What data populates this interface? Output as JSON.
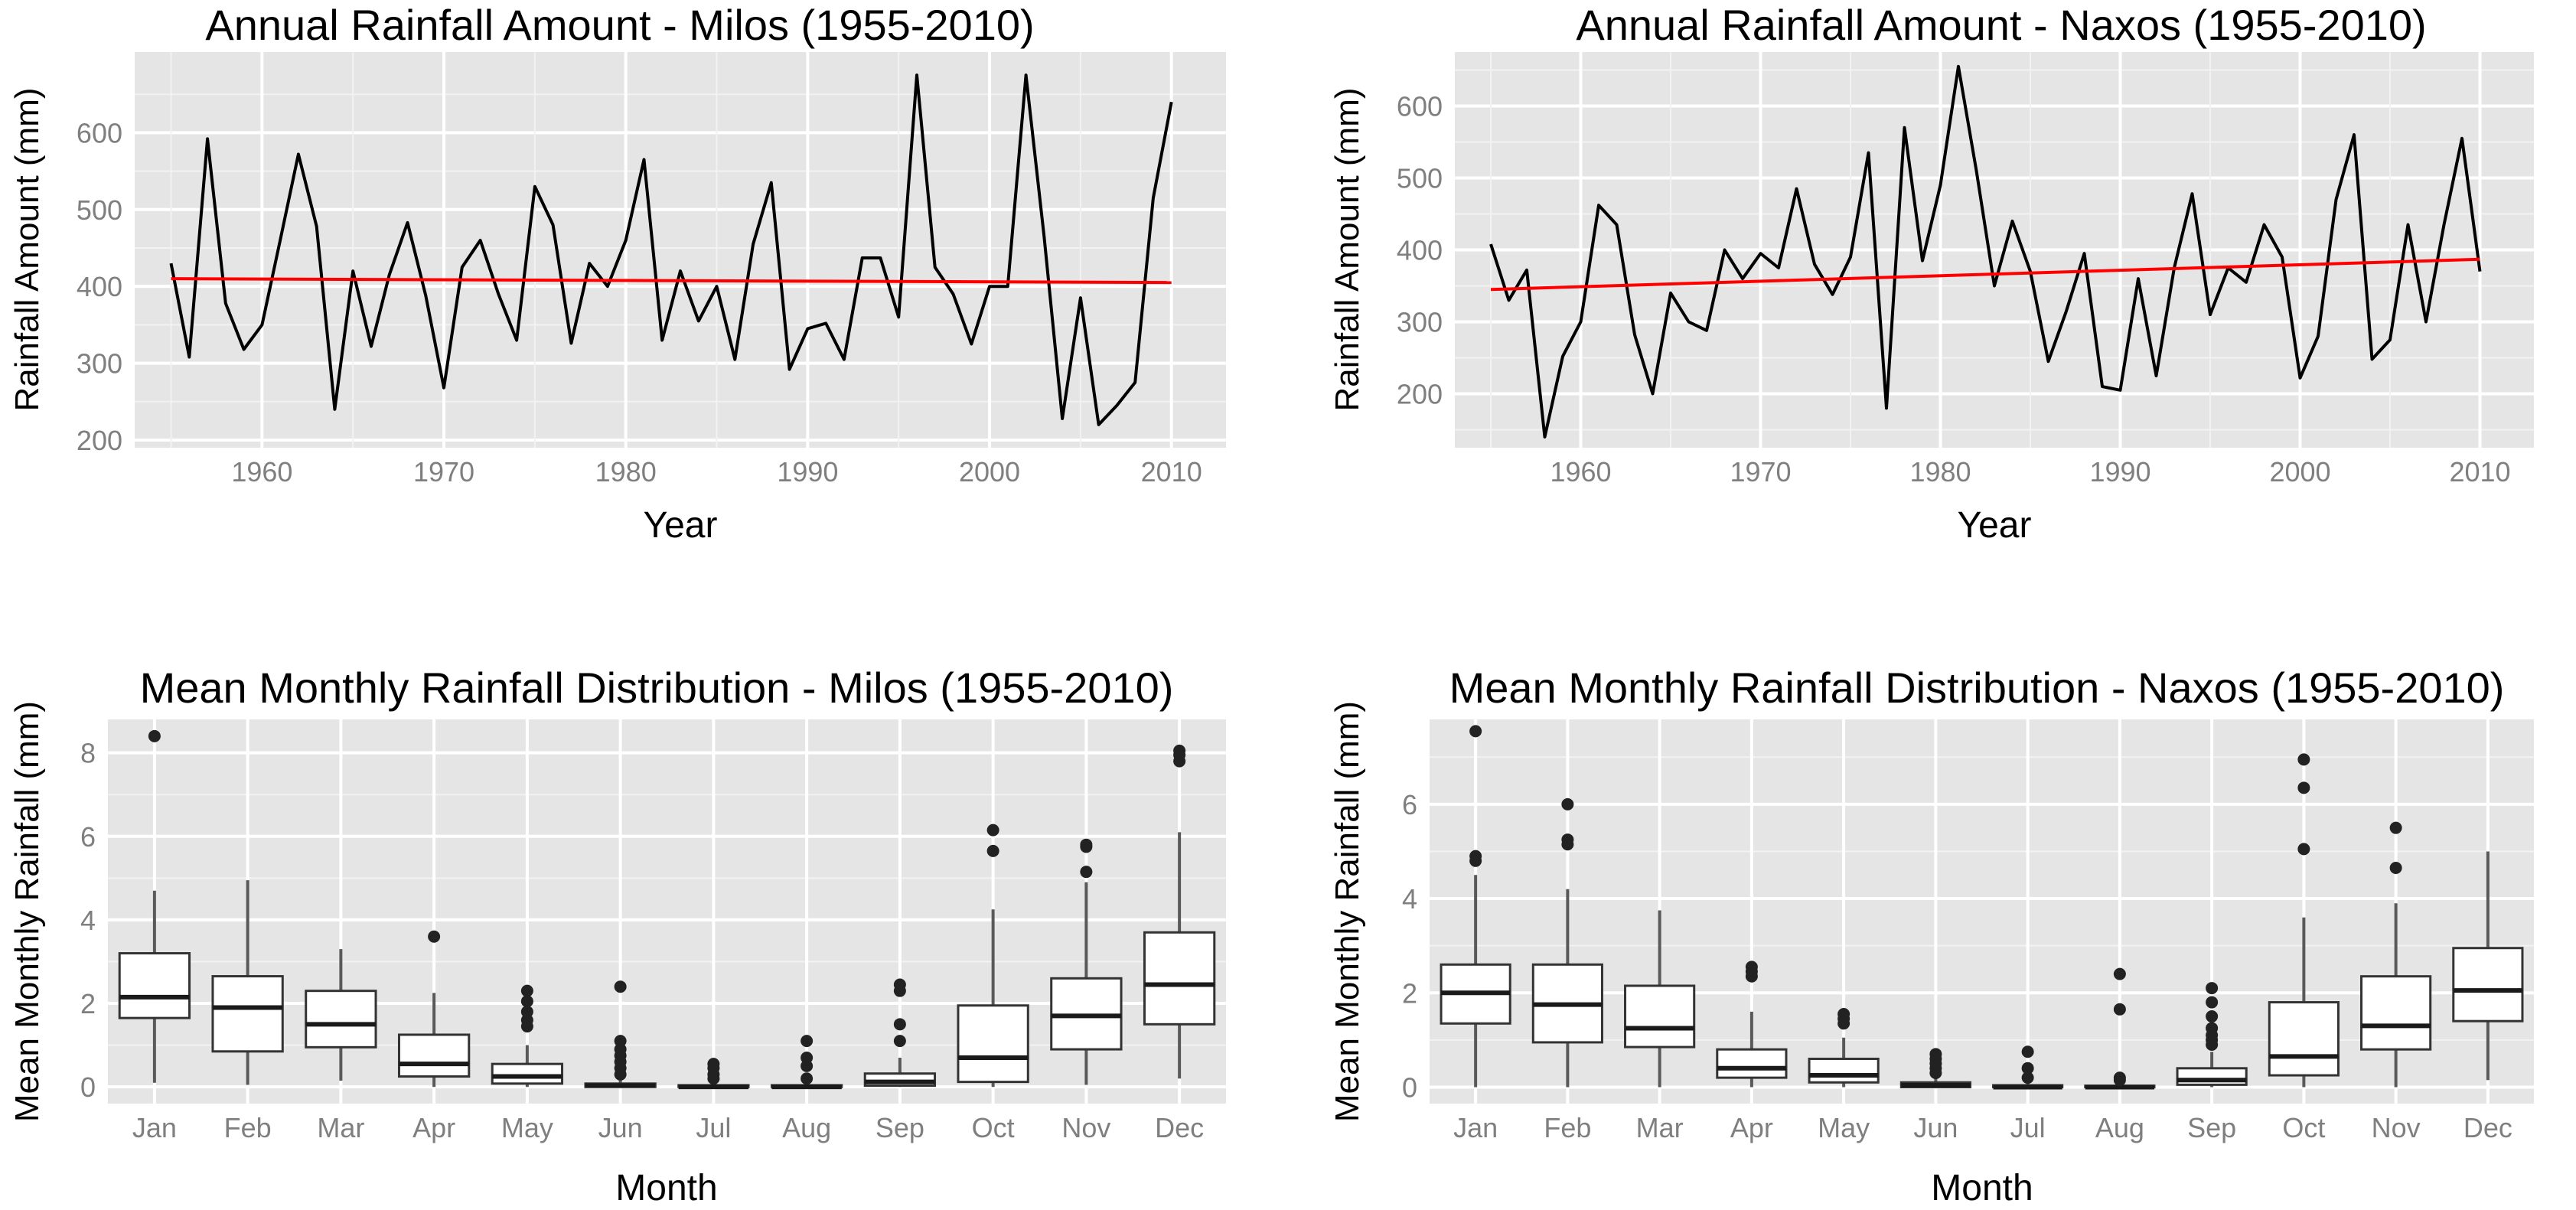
{
  "chart_data": [
    {
      "type": "line",
      "title": "Annual Rainfall Amount - Milos (1955-2010)",
      "xlabel": "Year",
      "ylabel": "Rainfall Amount (mm)",
      "xlim": [
        1953,
        2013
      ],
      "ylim": [
        190,
        705
      ],
      "x_ticks": [
        1960,
        1970,
        1980,
        1990,
        2000,
        2010
      ],
      "y_ticks": [
        200,
        300,
        400,
        500,
        600
      ],
      "x": [
        1955,
        1956,
        1957,
        1958,
        1959,
        1960,
        1961,
        1962,
        1963,
        1964,
        1965,
        1966,
        1967,
        1968,
        1969,
        1970,
        1971,
        1972,
        1973,
        1974,
        1975,
        1976,
        1977,
        1978,
        1979,
        1980,
        1981,
        1982,
        1983,
        1984,
        1985,
        1986,
        1987,
        1988,
        1989,
        1990,
        1991,
        1992,
        1993,
        1994,
        1995,
        1996,
        1997,
        1998,
        1999,
        2000,
        2001,
        2002,
        2003,
        2004,
        2005,
        2006,
        2007,
        2008,
        2009,
        2010
      ],
      "series": [
        {
          "name": "Annual rainfall",
          "color": "#000000",
          "values": [
            430,
            308,
            592,
            378,
            318,
            350,
            460,
            572,
            478,
            240,
            420,
            322,
            415,
            483,
            388,
            268,
            425,
            460,
            390,
            330,
            530,
            480,
            326,
            430,
            400,
            460,
            565,
            330,
            420,
            355,
            400,
            305,
            455,
            535,
            292,
            345,
            352,
            305,
            437,
            437,
            360,
            675,
            425,
            390,
            325,
            400,
            400,
            675,
            465,
            228,
            385,
            220,
            245,
            275,
            515,
            640
          ]
        },
        {
          "name": "Linear trend",
          "color": "#ff0000",
          "values_at": [
            1955,
            2010
          ],
          "trend": [
            410,
            405
          ]
        }
      ]
    },
    {
      "type": "line",
      "title": "Annual Rainfall Amount - Naxos (1955-2010)",
      "xlabel": "Year",
      "ylabel": "Rainfall Amount (mm)",
      "xlim": [
        1953,
        2013
      ],
      "ylim": [
        125,
        675
      ],
      "x_ticks": [
        1960,
        1970,
        1980,
        1990,
        2000,
        2010
      ],
      "y_ticks": [
        200,
        300,
        400,
        500,
        600
      ],
      "x": [
        1955,
        1956,
        1957,
        1958,
        1959,
        1960,
        1961,
        1962,
        1963,
        1964,
        1965,
        1966,
        1967,
        1968,
        1969,
        1970,
        1971,
        1972,
        1973,
        1974,
        1975,
        1976,
        1977,
        1978,
        1979,
        1980,
        1981,
        1982,
        1983,
        1984,
        1985,
        1986,
        1987,
        1988,
        1989,
        1990,
        1991,
        1992,
        1993,
        1994,
        1995,
        1996,
        1997,
        1998,
        1999,
        2000,
        2001,
        2002,
        2003,
        2004,
        2005,
        2006,
        2007,
        2008,
        2009,
        2010
      ],
      "series": [
        {
          "name": "Annual rainfall",
          "color": "#000000",
          "values": [
            408,
            330,
            372,
            140,
            252,
            300,
            462,
            435,
            282,
            200,
            340,
            300,
            288,
            400,
            360,
            395,
            375,
            485,
            380,
            338,
            390,
            535,
            180,
            570,
            385,
            490,
            655,
            510,
            350,
            440,
            370,
            245,
            315,
            395,
            210,
            205,
            360,
            225,
            375,
            478,
            310,
            375,
            355,
            435,
            390,
            222,
            280,
            470,
            560,
            248,
            275,
            435,
            300,
            435,
            555,
            370
          ]
        },
        {
          "name": "Linear trend",
          "color": "#ff0000",
          "values_at": [
            1955,
            2010
          ],
          "trend": [
            345,
            387
          ]
        }
      ]
    },
    {
      "type": "box",
      "title": "Mean Monthly Rainfall Distribution - Milos (1955-2010)",
      "xlabel": "Month",
      "ylabel": "Mean Monthly Rainfall (mm)",
      "ylim": [
        -0.4,
        8.8
      ],
      "y_ticks": [
        0,
        2,
        4,
        6,
        8
      ],
      "categories": [
        "Jan",
        "Feb",
        "Mar",
        "Apr",
        "May",
        "Jun",
        "Jul",
        "Aug",
        "Sep",
        "Oct",
        "Nov",
        "Dec"
      ],
      "boxes": [
        {
          "min": 0.1,
          "q1": 1.65,
          "median": 2.15,
          "q3": 3.2,
          "max": 4.7,
          "outliers": [
            8.4
          ]
        },
        {
          "min": 0.05,
          "q1": 0.85,
          "median": 1.9,
          "q3": 2.65,
          "max": 4.95,
          "outliers": []
        },
        {
          "min": 0.15,
          "q1": 0.95,
          "median": 1.5,
          "q3": 2.3,
          "max": 3.3,
          "outliers": []
        },
        {
          "min": 0.0,
          "q1": 0.25,
          "median": 0.55,
          "q3": 1.25,
          "max": 2.25,
          "outliers": [
            3.6
          ]
        },
        {
          "min": 0.0,
          "q1": 0.08,
          "median": 0.25,
          "q3": 0.55,
          "max": 1.0,
          "outliers": [
            1.45,
            1.6,
            1.8,
            2.05,
            2.3
          ]
        },
        {
          "min": 0.0,
          "q1": 0.0,
          "median": 0.03,
          "q3": 0.08,
          "max": 0.2,
          "outliers": [
            0.3,
            0.45,
            0.6,
            0.75,
            0.9,
            1.1,
            2.4
          ]
        },
        {
          "min": 0.0,
          "q1": 0.0,
          "median": 0.0,
          "q3": 0.04,
          "max": 0.1,
          "outliers": [
            0.2,
            0.3,
            0.45,
            0.55
          ]
        },
        {
          "min": 0.0,
          "q1": 0.0,
          "median": 0.0,
          "q3": 0.04,
          "max": 0.1,
          "outliers": [
            0.2,
            0.5,
            0.7,
            1.1
          ]
        },
        {
          "min": 0.0,
          "q1": 0.03,
          "median": 0.12,
          "q3": 0.32,
          "max": 0.7,
          "outliers": [
            1.1,
            1.5,
            2.3,
            2.45
          ]
        },
        {
          "min": 0.0,
          "q1": 0.12,
          "median": 0.7,
          "q3": 1.95,
          "max": 4.25,
          "outliers": [
            5.65,
            6.15
          ]
        },
        {
          "min": 0.05,
          "q1": 0.9,
          "median": 1.7,
          "q3": 2.6,
          "max": 4.9,
          "outliers": [
            5.15,
            5.75,
            5.8
          ]
        },
        {
          "min": 0.2,
          "q1": 1.5,
          "median": 2.45,
          "q3": 3.7,
          "max": 6.1,
          "outliers": [
            7.8,
            7.95,
            8.05
          ]
        }
      ]
    },
    {
      "type": "box",
      "title": "Mean Monthly Rainfall Distribution - Naxos (1955-2010)",
      "xlabel": "Month",
      "ylabel": "Mean Monthly Rainfall (mm)",
      "ylim": [
        -0.35,
        7.8
      ],
      "y_ticks": [
        0,
        2,
        4,
        6
      ],
      "categories": [
        "Jan",
        "Feb",
        "Mar",
        "Apr",
        "May",
        "Jun",
        "Jul",
        "Aug",
        "Sep",
        "Oct",
        "Nov",
        "Dec"
      ],
      "boxes": [
        {
          "min": 0.0,
          "q1": 1.35,
          "median": 2.0,
          "q3": 2.6,
          "max": 4.5,
          "outliers": [
            4.8,
            4.9,
            7.55
          ]
        },
        {
          "min": 0.0,
          "q1": 0.95,
          "median": 1.75,
          "q3": 2.6,
          "max": 4.2,
          "outliers": [
            5.15,
            5.25,
            6.0
          ]
        },
        {
          "min": 0.0,
          "q1": 0.85,
          "median": 1.25,
          "q3": 2.15,
          "max": 3.75,
          "outliers": []
        },
        {
          "min": 0.0,
          "q1": 0.2,
          "median": 0.4,
          "q3": 0.8,
          "max": 1.6,
          "outliers": [
            2.35,
            2.45,
            2.55
          ]
        },
        {
          "min": 0.0,
          "q1": 0.1,
          "median": 0.25,
          "q3": 0.6,
          "max": 1.05,
          "outliers": [
            1.35,
            1.45,
            1.55
          ]
        },
        {
          "min": 0.0,
          "q1": 0.0,
          "median": 0.04,
          "q3": 0.1,
          "max": 0.2,
          "outliers": [
            0.3,
            0.4,
            0.5,
            0.6,
            0.7
          ]
        },
        {
          "min": 0.0,
          "q1": 0.0,
          "median": 0.0,
          "q3": 0.04,
          "max": 0.1,
          "outliers": [
            0.2,
            0.4,
            0.75
          ]
        },
        {
          "min": 0.0,
          "q1": 0.0,
          "median": 0.0,
          "q3": 0.03,
          "max": 0.08,
          "outliers": [
            0.15,
            0.2,
            1.65,
            2.4
          ]
        },
        {
          "min": 0.0,
          "q1": 0.05,
          "median": 0.15,
          "q3": 0.4,
          "max": 0.75,
          "outliers": [
            0.9,
            1.0,
            1.1,
            1.25,
            1.5,
            1.8,
            2.1
          ]
        },
        {
          "min": 0.0,
          "q1": 0.25,
          "median": 0.65,
          "q3": 1.8,
          "max": 3.6,
          "outliers": [
            5.05,
            6.35,
            6.95
          ]
        },
        {
          "min": 0.0,
          "q1": 0.8,
          "median": 1.3,
          "q3": 2.35,
          "max": 3.9,
          "outliers": [
            4.65,
            5.5
          ]
        },
        {
          "min": 0.15,
          "q1": 1.4,
          "median": 2.05,
          "q3": 2.95,
          "max": 5.0,
          "outliers": []
        }
      ]
    }
  ]
}
